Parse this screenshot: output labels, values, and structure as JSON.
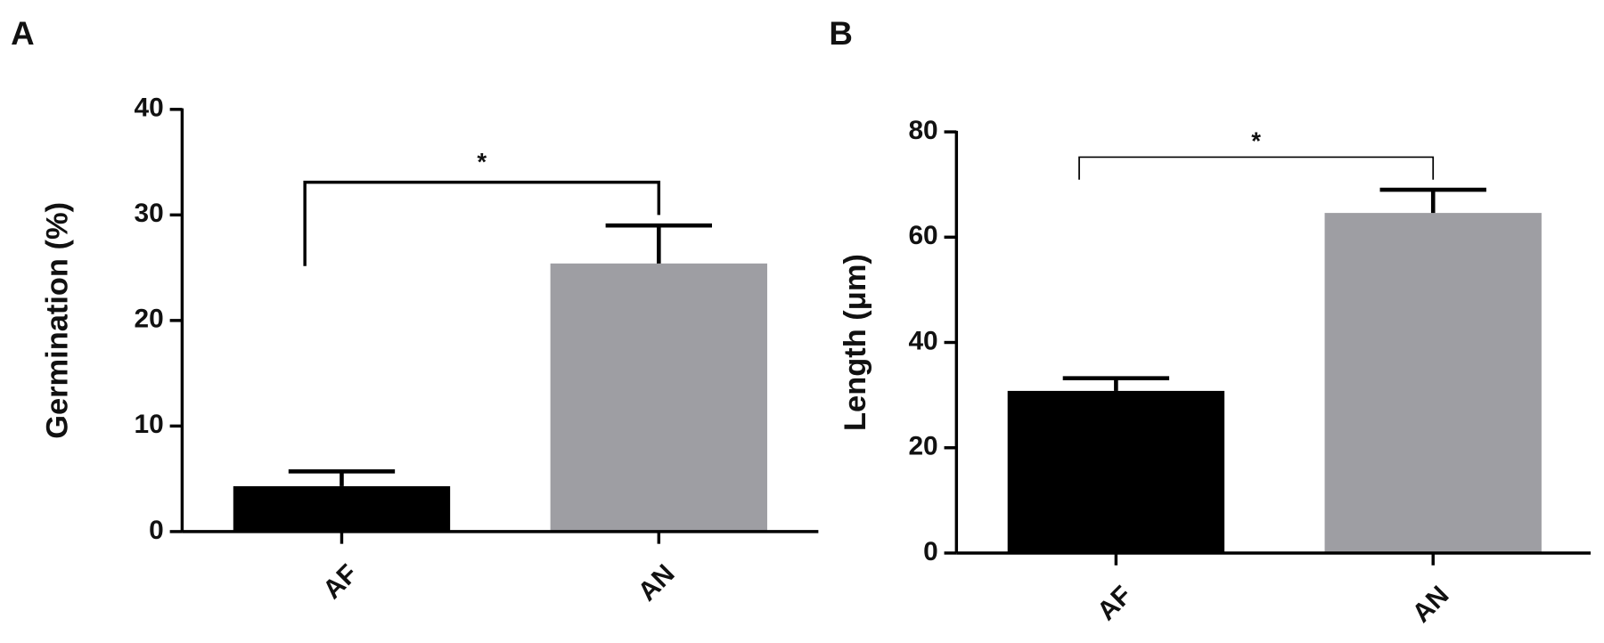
{
  "chart_data": [
    {
      "type": "bar",
      "panel": "A",
      "y_label": "Germination (%)",
      "categories": [
        "AF",
        "AN"
      ],
      "values": [
        4.3,
        25.4
      ],
      "errors": [
        1.4,
        3.6
      ],
      "colors": [
        "#000000",
        "#9e9ea3"
      ],
      "ylim": [
        0,
        40
      ],
      "yticks": [
        0,
        10,
        20,
        30,
        40
      ],
      "significance": {
        "label": "*",
        "y": 33.1
      }
    },
    {
      "type": "bar",
      "panel": "B",
      "y_label": "Length (μm)",
      "categories": [
        "AF",
        "AN"
      ],
      "values": [
        30.8,
        64.6
      ],
      "errors": [
        2.4,
        4.4
      ],
      "colors": [
        "#000000",
        "#9e9ea3"
      ],
      "ylim": [
        0,
        80
      ],
      "yticks": [
        0,
        20,
        40,
        60,
        80
      ],
      "significance": {
        "label": "*",
        "y": 75.2
      }
    }
  ]
}
